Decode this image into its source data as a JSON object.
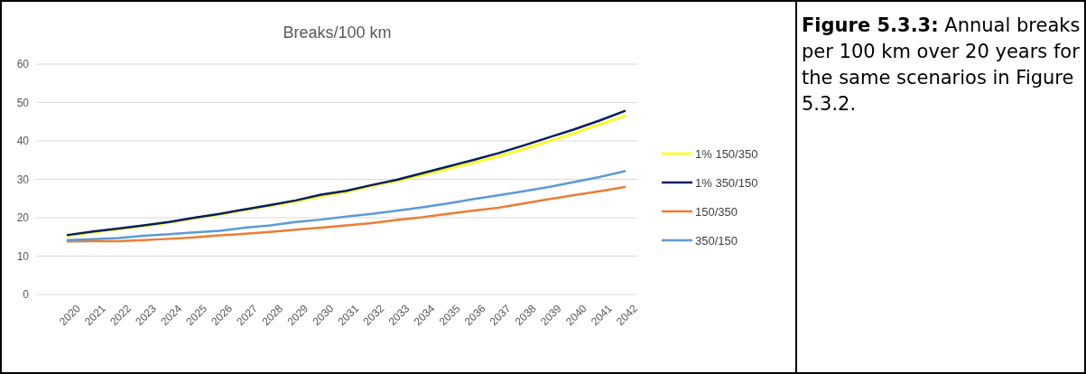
{
  "chart_data": {
    "type": "line",
    "title": "Breaks/100 km",
    "categories": [
      "2020",
      "2021",
      "2022",
      "2023",
      "2024",
      "2025",
      "2026",
      "2027",
      "2028",
      "2029",
      "2030",
      "2031",
      "2032",
      "2033",
      "2034",
      "2035",
      "2036",
      "2037",
      "2038",
      "2039",
      "2040",
      "2041",
      "2042"
    ],
    "series": [
      {
        "name": "1% 150/350",
        "color": "#ffff00",
        "values": [
          15.3,
          16.2,
          17.0,
          17.8,
          18.7,
          19.8,
          20.8,
          22.0,
          23.1,
          24.2,
          25.6,
          26.7,
          28.2,
          29.6,
          31.1,
          32.7,
          34.3,
          36.0,
          37.9,
          39.9,
          42.0,
          44.3,
          46.5
        ]
      },
      {
        "name": "1% 350/150",
        "color": "#002060",
        "values": [
          15.5,
          16.4,
          17.2,
          18.0,
          18.9,
          20.0,
          21.0,
          22.2,
          23.3,
          24.5,
          26.0,
          27.0,
          28.5,
          29.9,
          31.6,
          33.3,
          35.0,
          36.8,
          38.8,
          40.9,
          43.0,
          45.3,
          47.8
        ]
      },
      {
        "name": "150/350",
        "color": "#ed7d31",
        "values": [
          13.8,
          13.9,
          13.9,
          14.2,
          14.5,
          14.9,
          15.4,
          15.8,
          16.3,
          16.9,
          17.4,
          18.0,
          18.6,
          19.4,
          20.1,
          21.0,
          21.8,
          22.6,
          23.7,
          24.8,
          25.9,
          26.9,
          28.0
        ]
      },
      {
        "name": "350/150",
        "color": "#5b9bd5",
        "values": [
          14.2,
          14.4,
          14.7,
          15.3,
          15.7,
          16.2,
          16.6,
          17.4,
          18.0,
          18.9,
          19.5,
          20.3,
          21.0,
          21.8,
          22.7,
          23.7,
          24.8,
          25.8,
          26.9,
          28.0,
          29.3,
          30.6,
          32.1
        ]
      }
    ],
    "ylim": [
      0,
      60
    ],
    "yticks": [
      0,
      10,
      20,
      30,
      40,
      50,
      60
    ],
    "grid": "y",
    "legend": "right",
    "marker": "none",
    "line_style": "solid",
    "annotations": [
      "Figure 5.3.3:",
      "Annual breaks per 100 km over 20 years for the same scenarios in Figure 5.3.2."
    ]
  }
}
